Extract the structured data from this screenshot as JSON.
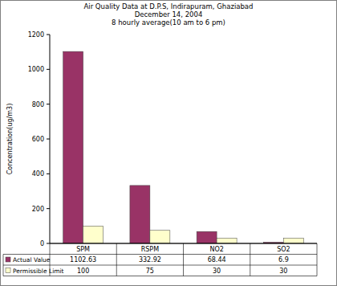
{
  "chart_data": {
    "type": "bar",
    "title": "Air Quality Data at D.P.S, Indirapuram, Ghaziabad",
    "subtitle": [
      "December 14, 2004",
      "8 hourly average(10 am to 6 pm)"
    ],
    "y_label": "Concentration(ug/m3)",
    "categories": [
      "SPM",
      "RSPM",
      "NO2",
      "SO2"
    ],
    "series": [
      {
        "name": "Actual Value",
        "color": "#993366",
        "values": [
          1102.63,
          332.92,
          68.44,
          6.9
        ]
      },
      {
        "name": "Permissible Limit",
        "color": "#ffffcc",
        "values": [
          100,
          75,
          30,
          30
        ]
      }
    ],
    "ylim": [
      0,
      1200
    ],
    "yticks": [
      0,
      200,
      400,
      600,
      800,
      1000,
      1200
    ],
    "grid": false,
    "legend": "bottom"
  }
}
